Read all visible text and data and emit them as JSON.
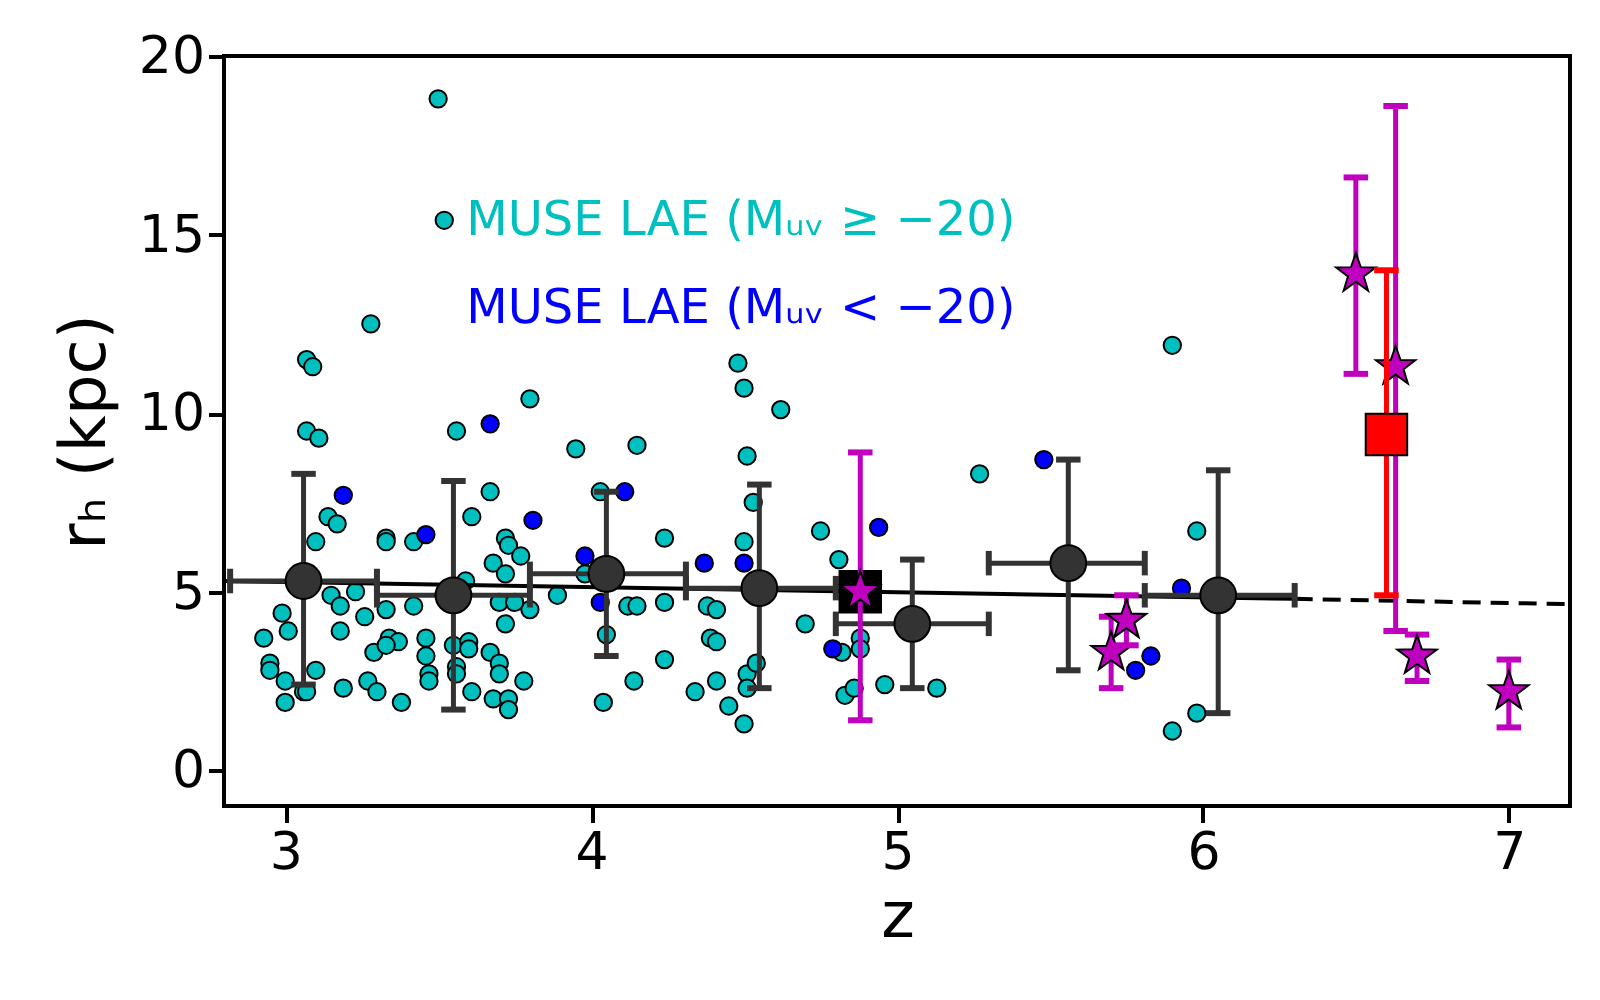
{
  "chart_data": {
    "type": "scatter",
    "xlabel": "z",
    "ylabel": "rₕ (kpc)",
    "xlim": [
      2.8,
      7.2
    ],
    "ylim": [
      -1,
      20
    ],
    "xticks": [
      3,
      4,
      5,
      6,
      7
    ],
    "yticks": [
      0,
      5,
      10,
      15,
      20
    ],
    "grid": false,
    "legend": "top",
    "series": [
      {
        "name": "MUSE LAE (Mᵤᵥ ≥ −20)",
        "color": "#00bfbf",
        "marker": "circle",
        "x": [
          3.5,
          3.52,
          3.28,
          3.07,
          3.09,
          3.07,
          3.11,
          3.56,
          3.8,
          3.95,
          4.15,
          3.14,
          3.17,
          3.1,
          3.33,
          3.33,
          3.42,
          3.61,
          3.67,
          3.72,
          3.73,
          3.77,
          3.68,
          3.72,
          4.03,
          4.24,
          3.89,
          3.8,
          3.98,
          3.15,
          3.18,
          3.23,
          3.26,
          3.33,
          3.42,
          3.59,
          3.7,
          3.75,
          3.72,
          2.99,
          2.93,
          3.01,
          3.18,
          3.34,
          3.37,
          3.29,
          3.33,
          3.46,
          3.46,
          3.55,
          3.6,
          3.6,
          3.67,
          3.7,
          3.7,
          3.56,
          3.56,
          2.95,
          2.95,
          3.1,
          3.0,
          3.19,
          3.27,
          3.3,
          3.06,
          3.07,
          3.38,
          3.0,
          3.47,
          3.47,
          3.61,
          3.68,
          3.73,
          3.73,
          3.78,
          4.05,
          4.04,
          4.12,
          4.15,
          4.14,
          4.24,
          4.24,
          4.62,
          4.51,
          4.53,
          4.5,
          4.75,
          4.81,
          4.38,
          4.41,
          4.39,
          4.41,
          4.34,
          4.41,
          4.51,
          4.51,
          4.45,
          4.5,
          4.54,
          4.7,
          4.88,
          4.88,
          4.82,
          4.83,
          4.86,
          4.96,
          5.13,
          5.27,
          4.48,
          4.5,
          5.9,
          5.98,
          5.98,
          5.9
        ],
        "values": [
          18.8,
          15.4,
          12.5,
          11.5,
          11.3,
          9.5,
          9.3,
          9.5,
          10.4,
          9.0,
          9.1,
          7.1,
          6.9,
          6.4,
          6.5,
          6.4,
          6.4,
          7.1,
          7.8,
          6.5,
          6.3,
          6.0,
          5.8,
          5.5,
          7.8,
          6.5,
          4.9,
          4.5,
          5.5,
          4.9,
          4.6,
          5.0,
          4.3,
          4.5,
          4.6,
          5.3,
          4.7,
          4.7,
          4.1,
          4.4,
          3.7,
          3.9,
          3.9,
          3.7,
          3.6,
          3.3,
          3.5,
          3.7,
          3.2,
          3.5,
          3.6,
          3.4,
          3.3,
          3.0,
          2.7,
          2.9,
          2.7,
          3.0,
          2.8,
          2.8,
          2.5,
          2.3,
          2.5,
          2.2,
          2.2,
          2.2,
          1.9,
          1.9,
          2.7,
          2.5,
          2.2,
          2.0,
          2.0,
          1.7,
          2.5,
          3.8,
          1.9,
          4.6,
          4.6,
          2.5,
          3.1,
          4.7,
          10.1,
          8.8,
          7.5,
          6.4,
          6.7,
          5.9,
          4.6,
          4.5,
          3.7,
          3.6,
          2.2,
          2.5,
          2.7,
          2.3,
          1.8,
          1.3,
          3.0,
          4.1,
          3.7,
          3.4,
          3.3,
          2.1,
          2.3,
          2.4,
          2.3,
          8.3,
          11.4,
          10.7,
          11.9,
          6.7,
          1.6,
          1.1
        ]
      },
      {
        "name": "MUSE LAE (Mᵤᵥ < −20)",
        "color": "#0000ff",
        "marker": "circle",
        "x": [
          3.19,
          3.67,
          3.46,
          3.81,
          3.98,
          4.11,
          4.03,
          4.37,
          4.5,
          4.94,
          4.79,
          5.48,
          5.93,
          5.83,
          5.78
        ],
        "values": [
          7.7,
          9.7,
          6.6,
          7.0,
          6.0,
          7.8,
          4.7,
          5.8,
          5.8,
          6.8,
          3.4,
          8.7,
          5.1,
          3.2,
          2.8
        ]
      },
      {
        "type": "line",
        "color": "#000000",
        "line_style": "solid",
        "x": [
          2.8,
          6.3
        ],
        "values": [
          5.3,
          4.8
        ]
      },
      {
        "type": "line",
        "color": "#000000",
        "line_style": "dashed",
        "x": [
          6.3,
          7.2
        ],
        "values": [
          4.8,
          4.65
        ]
      },
      {
        "color": "#333333",
        "marker": "circle",
        "x": [
          3.06,
          3.55,
          4.05,
          4.55,
          5.05,
          5.56,
          6.05
        ],
        "values": [
          5.3,
          4.9,
          5.5,
          5.1,
          4.1,
          5.8,
          4.9
        ],
        "errors": [
          [
            2.4,
            8.3
          ],
          [
            1.7,
            8.1
          ],
          [
            3.2,
            7.8
          ],
          [
            2.3,
            8.0
          ],
          [
            2.3,
            5.9
          ],
          [
            2.8,
            8.7
          ],
          [
            1.6,
            8.4
          ]
        ],
        "xerrors": [
          [
            2.82,
            3.3
          ],
          [
            3.3,
            3.8
          ],
          [
            3.8,
            4.31
          ],
          [
            4.31,
            4.8
          ],
          [
            4.8,
            5.3
          ],
          [
            5.3,
            5.81
          ],
          [
            5.81,
            6.3
          ]
        ]
      },
      {
        "color": "#000000",
        "marker": "square",
        "x": [
          4.88
        ],
        "values": [
          5.0
        ]
      },
      {
        "color": "#bf00bf",
        "marker": "star",
        "x": [
          4.88,
          5.7,
          6.5,
          6.63,
          6.7,
          7.0
        ],
        "values": [
          5.0,
          3.3,
          13.9,
          11.3,
          3.2,
          2.2
        ],
        "errors": [
          [
            1.4,
            8.9
          ],
          [
            2.3,
            4.3
          ],
          [
            11.1,
            16.6
          ],
          [
            3.9,
            18.6
          ],
          [
            2.5,
            3.8
          ],
          [
            1.2,
            3.1
          ]
        ]
      },
      {
        "color": "#bf00bf",
        "marker": "star",
        "x": [
          5.75
        ],
        "values": [
          4.2
        ],
        "errors": [
          [
            3.5,
            4.9
          ]
        ]
      },
      {
        "color": "#ff0000",
        "marker": "square",
        "x": [
          6.6
        ],
        "values": [
          9.4
        ],
        "errors": [
          [
            4.9,
            14.0
          ]
        ]
      }
    ]
  }
}
